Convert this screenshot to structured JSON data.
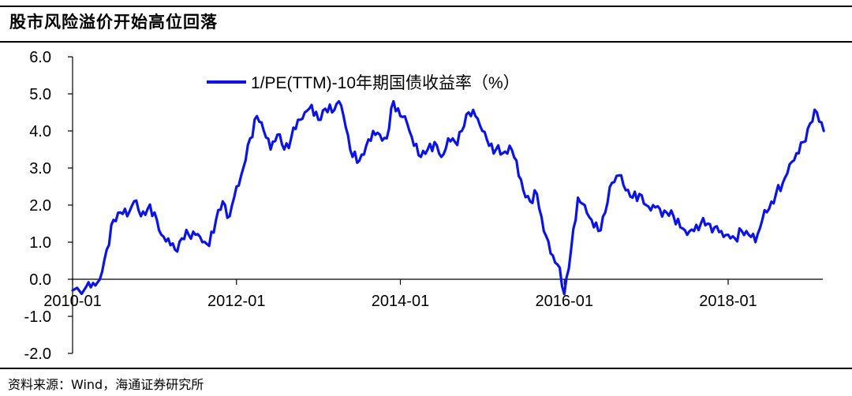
{
  "title": "股市风险溢价开始高位回落",
  "source": "资料来源：Wind，海通证券研究所",
  "chart_data": {
    "type": "line",
    "title": "股市风险溢价开始高位回落",
    "xlabel": "",
    "ylabel": "",
    "ylim": [
      -2.0,
      6.0
    ],
    "y_ticks": [
      "6.0",
      "5.0",
      "4.0",
      "3.0",
      "2.0",
      "1.0",
      "0.0",
      "-1.0",
      "-2.0"
    ],
    "x_ticks": [
      "2010-01",
      "2012-01",
      "2014-01",
      "2016-01",
      "2018-01"
    ],
    "grid": false,
    "legend_position": "top-left",
    "series": [
      {
        "name": "1/PE(TTM)-10年期国债收益率（%）",
        "color": "#0b14e6",
        "points": [
          [
            "2010-01",
            -0.3
          ],
          [
            "2010-03",
            -0.2
          ],
          [
            "2010-04",
            -0.1
          ],
          [
            "2010-05",
            0.0
          ],
          [
            "2010-06",
            0.8
          ],
          [
            "2010-07",
            1.6
          ],
          [
            "2010-08",
            1.8
          ],
          [
            "2010-09",
            1.7
          ],
          [
            "2010-10",
            2.1
          ],
          [
            "2010-11",
            1.7
          ],
          [
            "2010-12",
            1.9
          ],
          [
            "2011-01",
            1.8
          ],
          [
            "2011-02",
            1.2
          ],
          [
            "2011-03",
            1.1
          ],
          [
            "2011-04",
            0.8
          ],
          [
            "2011-05",
            1.1
          ],
          [
            "2011-06",
            1.2
          ],
          [
            "2011-07",
            1.2
          ],
          [
            "2011-08",
            1.0
          ],
          [
            "2011-09",
            0.9
          ],
          [
            "2011-10",
            1.6
          ],
          [
            "2011-11",
            2.1
          ],
          [
            "2011-12",
            1.7
          ],
          [
            "2012-01",
            2.5
          ],
          [
            "2012-02",
            3.0
          ],
          [
            "2012-03",
            3.8
          ],
          [
            "2012-04",
            4.4
          ],
          [
            "2012-05",
            4.0
          ],
          [
            "2012-06",
            3.5
          ],
          [
            "2012-07",
            3.9
          ],
          [
            "2012-08",
            3.5
          ],
          [
            "2012-09",
            3.8
          ],
          [
            "2012-10",
            4.3
          ],
          [
            "2012-11",
            4.5
          ],
          [
            "2012-12",
            4.7
          ],
          [
            "2013-01",
            4.3
          ],
          [
            "2013-02",
            4.6
          ],
          [
            "2013-03",
            4.5
          ],
          [
            "2013-04",
            4.8
          ],
          [
            "2013-05",
            4.1
          ],
          [
            "2013-06",
            3.3
          ],
          [
            "2013-07",
            3.2
          ],
          [
            "2013-08",
            3.6
          ],
          [
            "2013-09",
            4.0
          ],
          [
            "2013-10",
            3.9
          ],
          [
            "2013-11",
            3.8
          ],
          [
            "2013-12",
            4.8
          ],
          [
            "2014-01",
            4.4
          ],
          [
            "2014-02",
            4.2
          ],
          [
            "2014-03",
            3.6
          ],
          [
            "2014-04",
            3.3
          ],
          [
            "2014-05",
            3.5
          ],
          [
            "2014-06",
            3.7
          ],
          [
            "2014-07",
            3.3
          ],
          [
            "2014-08",
            3.8
          ],
          [
            "2014-09",
            3.7
          ],
          [
            "2014-10",
            4.0
          ],
          [
            "2014-11",
            4.5
          ],
          [
            "2014-12",
            4.4
          ],
          [
            "2015-01",
            4.0
          ],
          [
            "2015-02",
            3.6
          ],
          [
            "2015-03",
            3.5
          ],
          [
            "2015-04",
            3.4
          ],
          [
            "2015-05",
            3.6
          ],
          [
            "2015-06",
            3.2
          ],
          [
            "2015-07",
            2.4
          ],
          [
            "2015-08",
            2.1
          ],
          [
            "2015-09",
            2.3
          ],
          [
            "2015-10",
            1.3
          ],
          [
            "2015-11",
            0.7
          ],
          [
            "2015-12",
            0.4
          ],
          [
            "2016-01",
            -0.4
          ],
          [
            "2016-02",
            0.8
          ],
          [
            "2016-03",
            2.2
          ],
          [
            "2016-04",
            2.0
          ],
          [
            "2016-05",
            1.6
          ],
          [
            "2016-06",
            1.3
          ],
          [
            "2016-07",
            1.8
          ],
          [
            "2016-08",
            2.6
          ],
          [
            "2016-09",
            2.8
          ],
          [
            "2016-10",
            2.4
          ],
          [
            "2016-11",
            2.2
          ],
          [
            "2016-12",
            2.3
          ],
          [
            "2017-01",
            2.0
          ],
          [
            "2017-02",
            2.0
          ],
          [
            "2017-03",
            1.9
          ],
          [
            "2017-04",
            1.8
          ],
          [
            "2017-05",
            1.7
          ],
          [
            "2017-06",
            1.4
          ],
          [
            "2017-07",
            1.2
          ],
          [
            "2017-08",
            1.3
          ],
          [
            "2017-09",
            1.5
          ],
          [
            "2017-10",
            1.5
          ],
          [
            "2017-11",
            1.4
          ],
          [
            "2017-12",
            1.3
          ],
          [
            "2018-01",
            1.2
          ],
          [
            "2018-02",
            1.1
          ],
          [
            "2018-03",
            1.3
          ],
          [
            "2018-04",
            1.2
          ],
          [
            "2018-05",
            1.0
          ],
          [
            "2018-06",
            1.6
          ],
          [
            "2018-07",
            1.9
          ],
          [
            "2018-08",
            2.3
          ],
          [
            "2018-09",
            2.6
          ],
          [
            "2018-10",
            3.1
          ],
          [
            "2018-11",
            3.4
          ],
          [
            "2018-12",
            3.7
          ],
          [
            "2019-01",
            4.2
          ],
          [
            "2019-02",
            4.5
          ],
          [
            "2019-03",
            4.0
          ]
        ]
      }
    ]
  }
}
